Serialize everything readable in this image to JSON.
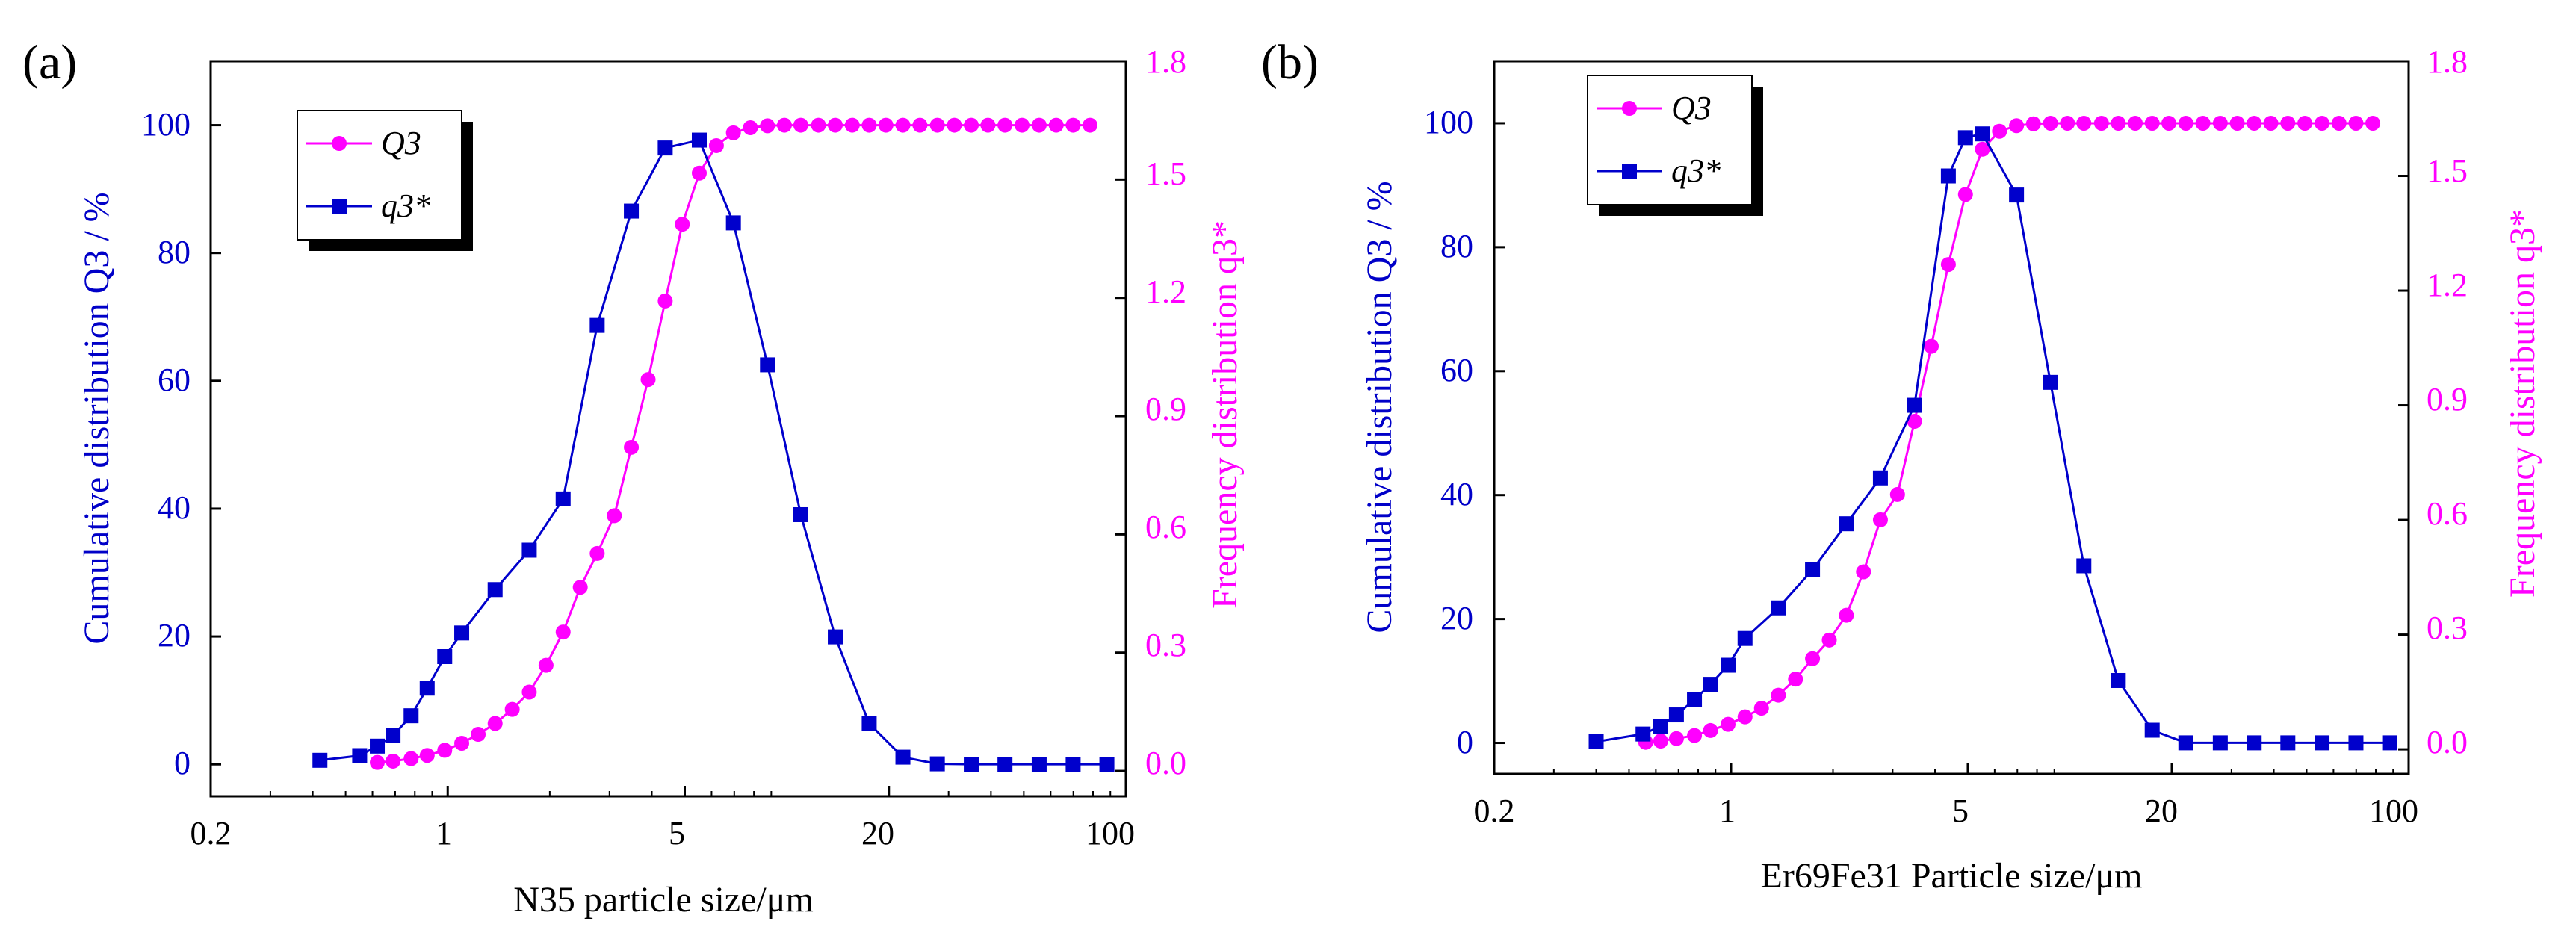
{
  "colors": {
    "axis": "#000000",
    "left_axis": "#0000c8",
    "right_axis": "#ff00ff",
    "Q3": "#ff00ff",
    "q3": "#0000cc"
  },
  "chart_data": [
    {
      "type": "line",
      "panel_label": "(a)",
      "xlabel": "N35 particle size/μm",
      "ylabel_left": "Cumulative distribution Q3 / %",
      "ylabel_right": "Frequency distribution q3*",
      "x_scale": "log",
      "xlim": [
        0.2,
        100
      ],
      "ylim_left": [
        -5,
        110
      ],
      "ylim_right": [
        -0.0643,
        1.8
      ],
      "x_ticks": [
        "0.2",
        "1",
        "5",
        "20",
        "100"
      ],
      "y_left_ticks": [
        "0",
        "20",
        "40",
        "60",
        "80",
        "100"
      ],
      "y_right_ticks": [
        "0.0",
        "0.3",
        "0.6",
        "0.9",
        "1.2",
        "1.5",
        "1.8"
      ],
      "legend": {
        "placement": "top-left",
        "entries": [
          "Q3",
          "q3*"
        ]
      },
      "grid": false,
      "series": [
        {
          "name": "Q3",
          "axis": "left",
          "marker": "circle",
          "x": [
            0.62,
            0.69,
            0.78,
            0.87,
            0.98,
            1.1,
            1.23,
            1.38,
            1.55,
            1.74,
            1.95,
            2.19,
            2.46,
            2.76,
            3.1,
            3.48,
            3.9,
            4.38,
            4.92,
            5.52,
            6.2,
            6.96,
            7.81,
            8.77,
            9.84,
            11.0,
            12.4,
            13.9,
            15.6,
            17.5,
            19.6,
            22.0,
            24.7,
            27.8,
            31.2,
            35.0,
            39.2,
            44.0,
            49.4,
            55.5,
            62.3,
            69.9,
            78.4
          ],
          "y": [
            0.3,
            0.5,
            0.9,
            1.4,
            2.2,
            3.3,
            4.7,
            6.4,
            8.6,
            11.3,
            15.5,
            20.7,
            27.7,
            33.0,
            38.9,
            49.6,
            60.2,
            72.5,
            84.5,
            92.5,
            96.8,
            98.8,
            99.6,
            99.9,
            100,
            100,
            100,
            100,
            100,
            100,
            100,
            100,
            100,
            100,
            100,
            100,
            100,
            100,
            100,
            100,
            100,
            100,
            100
          ]
        },
        {
          "name": "q3*",
          "axis": "right",
          "marker": "square",
          "x": [
            0.42,
            0.55,
            0.62,
            0.69,
            0.78,
            0.87,
            0.98,
            1.1,
            1.38,
            1.74,
            2.19,
            2.76,
            3.48,
            4.38,
            5.52,
            6.96,
            8.77,
            11.0,
            13.9,
            17.5,
            22.0,
            27.8,
            35.0,
            44.0,
            55.5,
            69.9,
            87.9
          ],
          "y": [
            0.027,
            0.039,
            0.063,
            0.09,
            0.14,
            0.21,
            0.29,
            0.35,
            0.46,
            0.56,
            0.69,
            1.13,
            1.42,
            1.58,
            1.6,
            1.39,
            1.03,
            0.65,
            0.34,
            0.12,
            0.035,
            0.018,
            0.017,
            0.017,
            0.017,
            0.017,
            0.017
          ]
        }
      ]
    },
    {
      "type": "line",
      "panel_label": "(b)",
      "xlabel": "Er69Fe31 Particle size/μm",
      "ylabel_left": "Cumulative distribution Q3 / %",
      "ylabel_right": "Frequency distribution q3*",
      "x_scale": "log",
      "xlim": [
        0.2,
        100
      ],
      "ylim_left": [
        -5,
        110
      ],
      "ylim_right": [
        -0.0643,
        1.8
      ],
      "x_ticks": [
        "0.2",
        "1",
        "5",
        "20",
        "100"
      ],
      "y_left_ticks": [
        "0",
        "20",
        "40",
        "60",
        "80",
        "100"
      ],
      "y_right_ticks": [
        "0.0",
        "0.3",
        "0.6",
        "0.9",
        "1.2",
        "1.5",
        "1.8"
      ],
      "legend": {
        "placement": "top-left",
        "entries": [
          "Q3",
          "q3*"
        ]
      },
      "grid": false,
      "series": [
        {
          "name": "Q3",
          "axis": "left",
          "marker": "circle",
          "x": [
            0.56,
            0.62,
            0.69,
            0.78,
            0.87,
            0.98,
            1.1,
            1.23,
            1.38,
            1.55,
            1.74,
            1.95,
            2.19,
            2.46,
            2.76,
            3.1,
            3.48,
            3.9,
            4.38,
            4.92,
            5.52,
            6.2,
            6.96,
            7.81,
            8.77,
            9.84,
            11.0,
            12.4,
            13.9,
            15.6,
            17.5,
            19.6,
            22.0,
            24.7,
            27.8,
            31.2,
            35.0,
            39.2,
            44.0,
            49.4,
            55.5,
            62.3,
            69.9,
            78.4
          ],
          "y": [
            0.1,
            0.3,
            0.7,
            1.2,
            2.0,
            3.0,
            4.2,
            5.6,
            7.7,
            10.3,
            13.6,
            16.6,
            20.6,
            27.6,
            36.0,
            40.1,
            51.9,
            64.0,
            77.2,
            88.5,
            95.8,
            98.7,
            99.6,
            99.9,
            100,
            100,
            100,
            100,
            100,
            100,
            100,
            100,
            100,
            100,
            100,
            100,
            100,
            100,
            100,
            100,
            100,
            100,
            100,
            100
          ]
        },
        {
          "name": "q3*",
          "axis": "right",
          "marker": "square",
          "x": [
            0.4,
            0.55,
            0.62,
            0.69,
            0.78,
            0.87,
            0.98,
            1.1,
            1.38,
            1.74,
            2.19,
            2.76,
            3.48,
            4.38,
            4.92,
            5.52,
            6.96,
            8.77,
            11.0,
            13.9,
            17.5,
            22.0,
            27.8,
            35.0,
            44.0,
            55.5,
            69.9,
            87.9
          ],
          "y": [
            0.02,
            0.04,
            0.06,
            0.09,
            0.13,
            0.17,
            0.22,
            0.29,
            0.37,
            0.47,
            0.59,
            0.71,
            0.9,
            1.5,
            1.6,
            1.61,
            1.45,
            0.96,
            0.48,
            0.18,
            0.05,
            0.017,
            0.017,
            0.017,
            0.017,
            0.017,
            0.017,
            0.017
          ]
        }
      ]
    }
  ]
}
